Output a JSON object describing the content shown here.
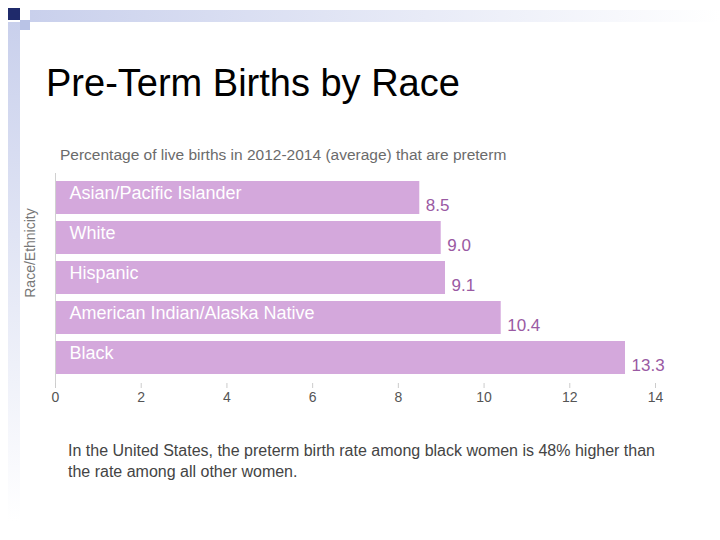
{
  "chart_data": {
    "type": "bar",
    "title": "Pre-Term Births by Race",
    "subtitle": "Percentage of live births in 2012-2014 (average) that are preterm",
    "ylabel": "Race/Ethnicity",
    "categories": [
      "Asian/Pacific Islander",
      "White",
      "Hispanic",
      "American Indian/Alaska Native",
      "Black"
    ],
    "values": [
      8.5,
      9.0,
      9.1,
      10.4,
      13.3
    ],
    "value_labels": [
      "8.5",
      "9.0",
      "9.1",
      "10.4",
      "13.3"
    ],
    "color": "#d4a8dc",
    "orientation": "horizontal",
    "data_labels": true,
    "tick_labels": "x",
    "grid": false,
    "xlim": [
      0,
      14
    ],
    "xticks": [
      0,
      2,
      4,
      6,
      8,
      10,
      12,
      14
    ],
    "annotation": "In the United States, the preterm birth rate among black women is 48% higher than the rate among all other women."
  }
}
